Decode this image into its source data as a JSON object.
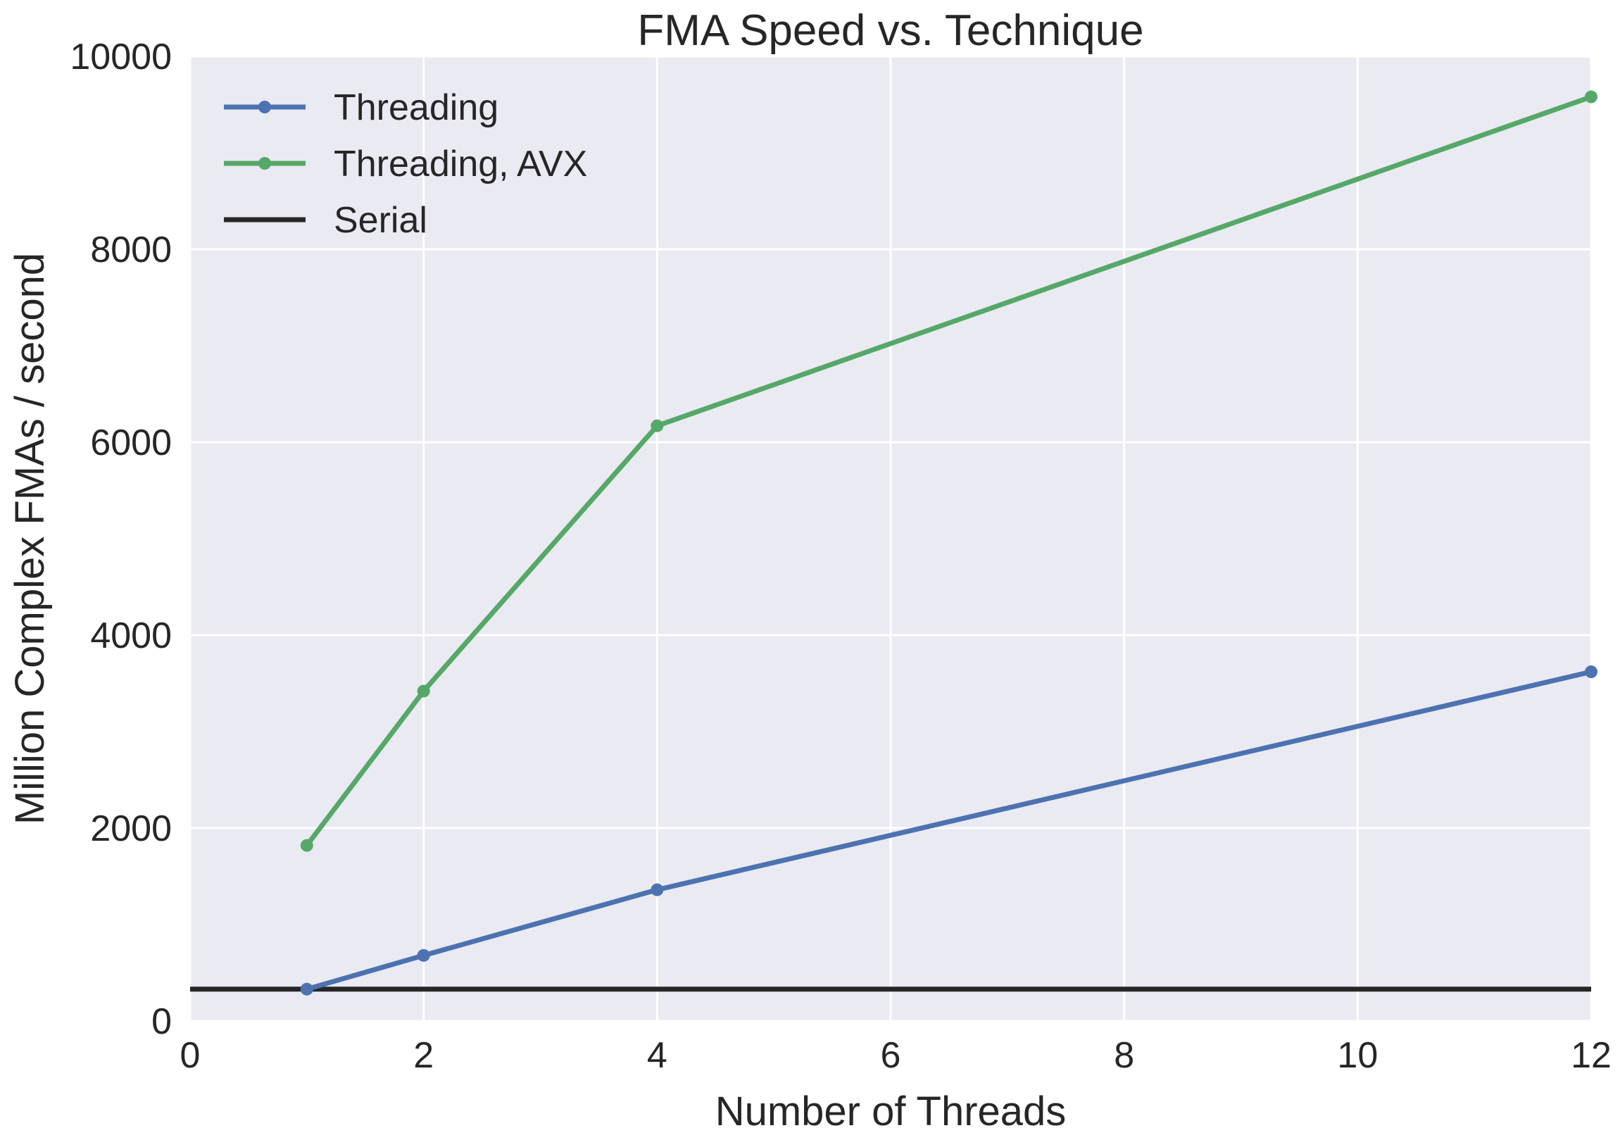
{
  "chart_data": {
    "type": "line",
    "title": "FMA Speed vs. Technique",
    "xlabel": "Number of Threads",
    "ylabel": "Million Complex FMAs / second",
    "xlim": [
      0,
      12
    ],
    "ylim": [
      0,
      10000
    ],
    "xticks": [
      0,
      2,
      4,
      6,
      8,
      10,
      12
    ],
    "yticks": [
      0,
      2000,
      4000,
      6000,
      8000,
      10000
    ],
    "grid": true,
    "legend_position": "top-left",
    "series": [
      {
        "name": "Threading",
        "color": "#4c72b0",
        "markers": true,
        "x": [
          1,
          2,
          4,
          12
        ],
        "y": [
          330,
          680,
          1360,
          3620
        ]
      },
      {
        "name": "Threading, AVX",
        "color": "#55a868",
        "markers": true,
        "x": [
          1,
          2,
          4,
          12
        ],
        "y": [
          1820,
          3420,
          6170,
          9580
        ]
      },
      {
        "name": "Serial",
        "color": "#262626",
        "markers": false,
        "x": [
          0,
          12
        ],
        "y": [
          330,
          330
        ]
      }
    ]
  }
}
